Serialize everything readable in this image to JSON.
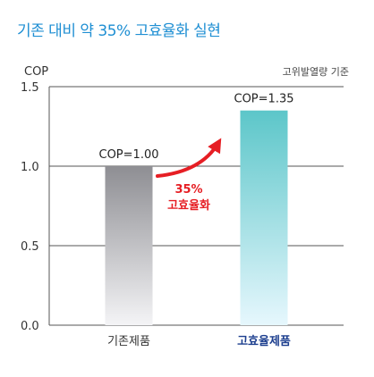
{
  "title": "기존 대비 약 35% 고효율화 실현",
  "chart_data": {
    "type": "bar",
    "ylabel": "COP",
    "note": "고위발열량 기준",
    "categories": [
      "기존제품",
      "고효율제품"
    ],
    "values": [
      1.0,
      1.35
    ],
    "data_labels": [
      "COP=1.00",
      "COP=1.35"
    ],
    "yticks": [
      "0.0",
      "0.5",
      "1.0",
      "1.5"
    ],
    "ylim": [
      0,
      1.5
    ],
    "grid": true,
    "annotation": {
      "line1": "35%",
      "line2": "고효율화"
    },
    "colors": {
      "bar_old_top": "#8e8e93",
      "bar_old_bottom": "#f4f4f6",
      "bar_new_top": "#5cc6c9",
      "bar_new_bottom": "#e6f7fd",
      "arrow": "#e61e24",
      "highlight_label": "#1d3f8f",
      "title": "#1f8fd3"
    }
  }
}
